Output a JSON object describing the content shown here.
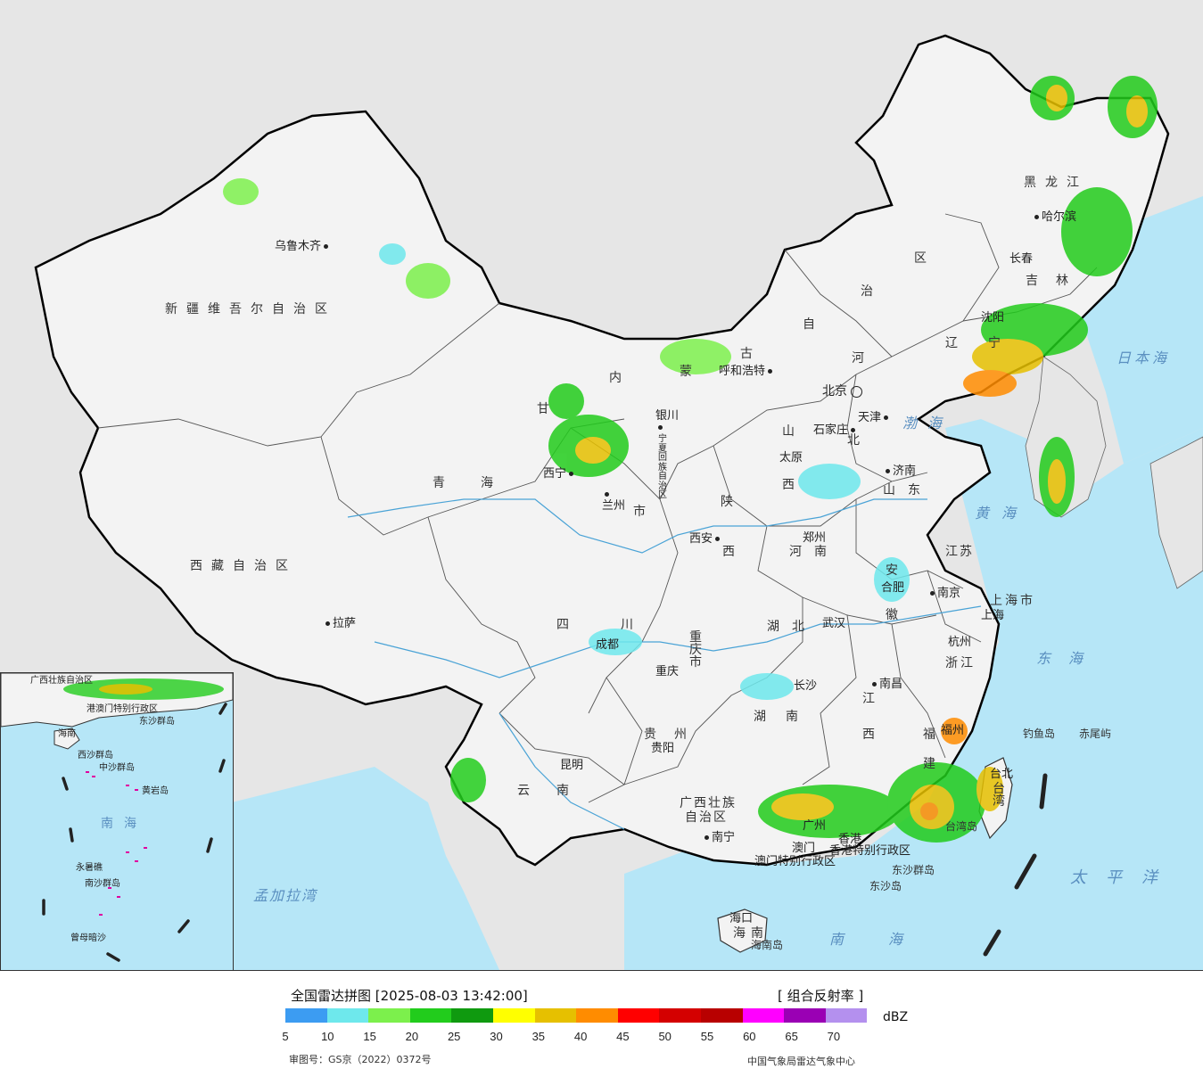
{
  "map": {
    "provinces": [
      {
        "name": "新疆维吾尔自治区",
        "key": "xinjiang"
      },
      {
        "name": "西藏自治区",
        "key": "xizang"
      },
      {
        "name": "青海",
        "key": "qinghai"
      },
      {
        "name": "甘",
        "key": "gansu"
      },
      {
        "name": "内",
        "key": "nmg1"
      },
      {
        "name": "蒙",
        "key": "nmg2"
      },
      {
        "name": "古",
        "key": "nmg3"
      },
      {
        "name": "自",
        "key": "nmg4"
      },
      {
        "name": "治",
        "key": "nmg5"
      },
      {
        "name": "区",
        "key": "nmg6"
      },
      {
        "name": "黑龙江",
        "key": "heilongjiang"
      },
      {
        "name": "吉林",
        "key": "jilin"
      },
      {
        "name": "辽",
        "key": "liaoning1"
      },
      {
        "name": "宁",
        "key": "liaoning2"
      },
      {
        "name": "河",
        "key": "hebei1"
      },
      {
        "name": "北",
        "key": "hebei2"
      },
      {
        "name": "山",
        "key": "shanxi1"
      },
      {
        "name": "西",
        "key": "shanxi2"
      },
      {
        "name": "山东",
        "key": "shandong"
      },
      {
        "name": "陕",
        "key": "shaanxi1"
      },
      {
        "name": "西",
        "key": "shaanxi2"
      },
      {
        "name": "河南",
        "key": "henan"
      },
      {
        "name": "江苏",
        "key": "jiangsu"
      },
      {
        "name": "安",
        "key": "anhui1"
      },
      {
        "name": "徽",
        "key": "anhui2"
      },
      {
        "name": "上海市",
        "key": "shanghai"
      },
      {
        "name": "湖北",
        "key": "hubei"
      },
      {
        "name": "四",
        "key": "sichuan1"
      },
      {
        "name": "川",
        "key": "sichuan2"
      },
      {
        "name": "重庆市",
        "key": "chongqing"
      },
      {
        "name": "浙江",
        "key": "zhejiang"
      },
      {
        "name": "江",
        "key": "jiangxi1"
      },
      {
        "name": "西",
        "key": "jiangxi2"
      },
      {
        "name": "湖南",
        "key": "hunan"
      },
      {
        "name": "贵州",
        "key": "guizhou"
      },
      {
        "name": "福",
        "key": "fujian1"
      },
      {
        "name": "建",
        "key": "fujian2"
      },
      {
        "name": "云南",
        "key": "yunnan"
      },
      {
        "name": "广西壮族",
        "key": "guangxi1"
      },
      {
        "name": "自治区",
        "key": "guangxi2"
      },
      {
        "name": "台湾",
        "key": "taiwan"
      },
      {
        "name": "海南",
        "key": "hainan"
      },
      {
        "name": "宁夏回族自治区",
        "key": "ningxia"
      },
      {
        "name": "澳门特别行政区",
        "key": "macau"
      },
      {
        "name": "香港特别行政区",
        "key": "hongkong"
      },
      {
        "name": "市",
        "key": "gansu_shi"
      }
    ],
    "cities": [
      {
        "name": "乌鲁木齐"
      },
      {
        "name": "拉萨"
      },
      {
        "name": "西宁"
      },
      {
        "name": "兰州"
      },
      {
        "name": "银川"
      },
      {
        "name": "呼和浩特"
      },
      {
        "name": "北京"
      },
      {
        "name": "天津"
      },
      {
        "name": "石家庄"
      },
      {
        "name": "太原"
      },
      {
        "name": "济南"
      },
      {
        "name": "郑州"
      },
      {
        "name": "西安"
      },
      {
        "name": "哈尔滨"
      },
      {
        "name": "长春"
      },
      {
        "name": "沈阳"
      },
      {
        "name": "南京"
      },
      {
        "name": "合肥"
      },
      {
        "name": "上海"
      },
      {
        "name": "杭州"
      },
      {
        "name": "武汉"
      },
      {
        "name": "成都"
      },
      {
        "name": "重庆"
      },
      {
        "name": "长沙"
      },
      {
        "name": "南昌"
      },
      {
        "name": "福州"
      },
      {
        "name": "贵阳"
      },
      {
        "name": "昆明"
      },
      {
        "name": "南宁"
      },
      {
        "name": "广州"
      },
      {
        "name": "澳门"
      },
      {
        "name": "香港"
      },
      {
        "name": "台北"
      },
      {
        "name": "海口"
      }
    ],
    "seas": {
      "bohai": "渤海",
      "huanghai": "黄海",
      "donghai": "东海",
      "nanhai": "南海",
      "taipingyang": "太平洋",
      "ribenhai": "日本海",
      "mengjialawan": "孟加拉湾"
    },
    "islands": {
      "diaoyudao": "钓鱼岛",
      "chiweiyu": "赤尾屿",
      "dongshaqundao": "东沙群岛",
      "dongshadao": "东沙岛",
      "taiwandao": "台湾岛",
      "hainandao": "海南岛"
    },
    "inset": {
      "labels": {
        "guangxi": "广西壮族自治区",
        "gangao": "港澳门特别行政区",
        "dongsha": "东沙群岛",
        "hainan": "海南",
        "xisha": "西沙群岛",
        "zhongsha": "中沙群岛",
        "huangyan": "黄岩岛",
        "nanhai": "南海",
        "yongshu": "永暑礁",
        "nansha": "南沙群岛",
        "zengmu": "曾母暗沙"
      }
    }
  },
  "legend": {
    "title": "全国雷达拼图 [2025-08-03 13:42:00]",
    "product": "[ 组合反射率 ]",
    "unit": "dBZ",
    "colors": [
      "#3c9cf2",
      "#6ee8ec",
      "#7cf04c",
      "#22cc1c",
      "#0f9a0f",
      "#ffff00",
      "#e6c000",
      "#ff8c00",
      "#ff0000",
      "#d40000",
      "#b80000",
      "#ff00ff",
      "#9a00b4",
      "#b490ee"
    ],
    "ticks": [
      "5",
      "10",
      "15",
      "20",
      "25",
      "30",
      "35",
      "40",
      "45",
      "50",
      "55",
      "60",
      "65",
      "70"
    ],
    "review_no": "审图号：GS京（2022）0372号",
    "credit": "中国气象局雷达气象中心"
  }
}
